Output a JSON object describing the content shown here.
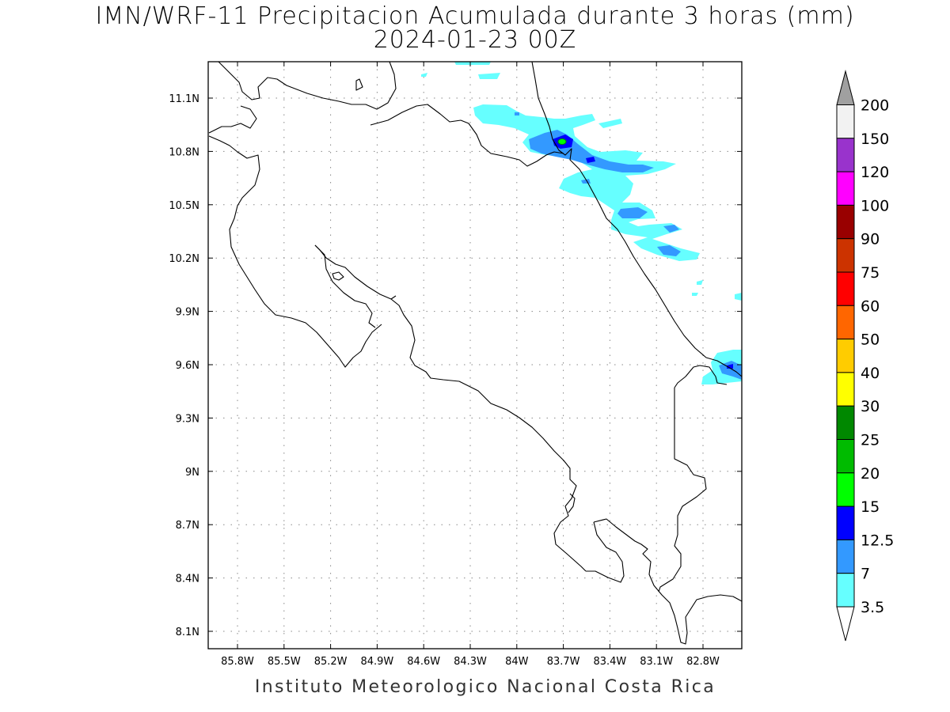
{
  "title": "IMN/WRF-11 Precipitacion Acumulada durante 3 horas (mm)",
  "subtitle": "2024-01-23 00Z",
  "credit": "Instituto Meteorologico Nacional Costa Rica",
  "map": {
    "lon_range": [
      -86.0,
      -82.55
    ],
    "lat_range": [
      8.0,
      11.3
    ],
    "lon_ticks": [
      "85.8W",
      "85.5W",
      "85.2W",
      "84.9W",
      "84.6W",
      "84.3W",
      "84W",
      "83.7W",
      "83.4W",
      "83.1W",
      "82.8W"
    ],
    "lat_ticks": [
      "11.1N",
      "10.8N",
      "10.5N",
      "10.2N",
      "9.9N",
      "9.6N",
      "9.3N",
      "9N",
      "8.7N",
      "8.4N",
      "8.1N"
    ]
  },
  "colorbar": {
    "labels": [
      "200",
      "150",
      "120",
      "100",
      "90",
      "75",
      "60",
      "50",
      "40",
      "30",
      "25",
      "20",
      "15",
      "12.5",
      "7",
      "3.5"
    ],
    "colors": [
      "#a0a0a0",
      "#f2f2f2",
      "#9933cc",
      "#ff00ff",
      "#990000",
      "#cc3300",
      "#ff0000",
      "#ff6600",
      "#ffcc00",
      "#ffff00",
      "#008800",
      "#00bb00",
      "#00ff00",
      "#0000ff",
      "#3399ff",
      "#66ffff",
      "#ffffff"
    ]
  }
}
